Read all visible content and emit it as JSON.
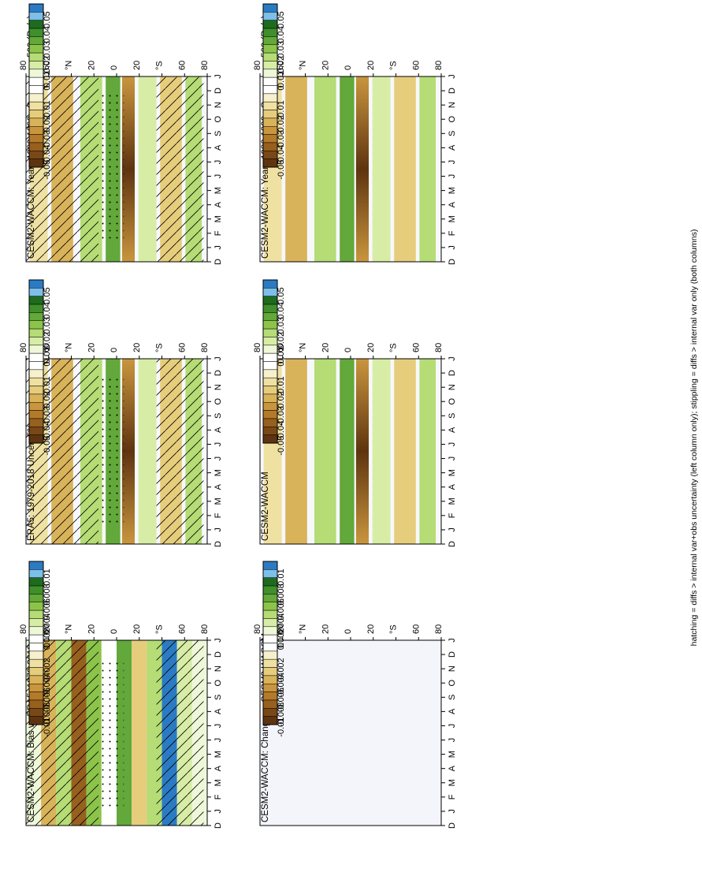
{
  "figure": {
    "footnote": "hatching = diffs > internal var+obs uncertainty (left column only); stippling = diffs > internal var only (both columns)"
  },
  "chart_data": [
    {
      "type": "heatmap",
      "panel": "left-top",
      "title": "CESM2-WACCM: Years 1980-1999 : Ocean : wap500 (Pa/s)",
      "x_ticks": [
        "D",
        "J",
        "F",
        "M",
        "A",
        "M",
        "J",
        "J",
        "A",
        "S",
        "O",
        "N",
        "D",
        "J"
      ],
      "y_ticks": [
        "80",
        "60",
        "°N",
        "20",
        "0",
        "20",
        "°S",
        "60",
        "80"
      ],
      "hatching": true,
      "stippling": true
    },
    {
      "type": "heatmap",
      "panel": "right-top",
      "title": "CESM2-WACCM: Years 1980-1999 : Ocean : wap500 (Pa/s)",
      "x_ticks": [
        "D",
        "J",
        "F",
        "M",
        "A",
        "M",
        "J",
        "J",
        "A",
        "S",
        "O",
        "N",
        "D",
        "J"
      ],
      "y_ticks": [
        "80",
        "60",
        "°N",
        "20",
        "0",
        "20",
        "°S",
        "60",
        "80"
      ],
      "hatching": false,
      "stippling": false
    },
    {
      "type": "heatmap",
      "panel": "left-middle",
      "title": "ERA5: 1979-2018 Uncer=5%",
      "x_ticks": [
        "D",
        "J",
        "F",
        "M",
        "A",
        "M",
        "J",
        "J",
        "A",
        "S",
        "O",
        "N",
        "D",
        "J"
      ],
      "y_ticks": [
        "80",
        "60",
        "°N",
        "20",
        "0",
        "20",
        "°S",
        "60",
        "80"
      ],
      "hatching": true,
      "stippling": true
    },
    {
      "type": "heatmap",
      "panel": "right-middle",
      "title": "CESM2-WACCM",
      "x_ticks": [
        "D",
        "J",
        "F",
        "M",
        "A",
        "M",
        "J",
        "J",
        "A",
        "S",
        "O",
        "N",
        "D",
        "J"
      ],
      "y_ticks": [
        "80",
        "60",
        "°N",
        "20",
        "0",
        "20",
        "°S",
        "60",
        "80"
      ],
      "hatching": false,
      "stippling": false
    },
    {
      "type": "heatmap",
      "panel": "left-bottom",
      "title": "CESM2-WACCM: Bias vs ERA5: 1979-2018",
      "x_ticks": [
        "D",
        "J",
        "F",
        "M",
        "A",
        "M",
        "J",
        "J",
        "A",
        "S",
        "O",
        "N",
        "D",
        "J"
      ],
      "y_ticks": [
        "80",
        "60",
        "°N",
        "20",
        "0",
        "20",
        "°S",
        "60",
        "80"
      ],
      "hatching": true,
      "stippling": true
    },
    {
      "type": "heatmap",
      "panel": "right-bottom",
      "title": "CESM2-WACCM: Change vs CESM2-WACCM",
      "x_ticks": [
        "D",
        "J",
        "F",
        "M",
        "A",
        "M",
        "J",
        "J",
        "A",
        "S",
        "O",
        "N",
        "D",
        "J"
      ],
      "y_ticks": [
        "80",
        "60",
        "°N",
        "20",
        "0",
        "20",
        "°S",
        "60",
        "80"
      ],
      "hatching": false,
      "stippling": false
    }
  ],
  "colorbars": {
    "large": {
      "labels": [
        "0.05",
        "0.04",
        "0.03",
        "0.02",
        "0.01",
        "0",
        "-0.01",
        "-0.02",
        "-0.03",
        "-0.04",
        "-0.05"
      ],
      "colors": [
        "#2b7bc4",
        "#7cc0ea",
        "#1e6b1e",
        "#3f8f2a",
        "#62a83a",
        "#8cc44a",
        "#b5dc75",
        "#d7eda6",
        "#eef7d8",
        "#ffffff",
        "#ffffff",
        "#f7f0cc",
        "#efe1a2",
        "#e6cd7c",
        "#d9b35a",
        "#c9963e",
        "#b37a2a",
        "#97601e",
        "#7a4816",
        "#5e3410"
      ]
    },
    "small": {
      "labels": [
        "0.01",
        "0.008",
        "0.006",
        "0.004",
        "0.002",
        "0",
        "-0.002",
        "-0.004",
        "-0.006",
        "-0.008",
        "-0.01"
      ],
      "colors": [
        "#2b7bc4",
        "#7cc0ea",
        "#1e6b1e",
        "#3f8f2a",
        "#62a83a",
        "#8cc44a",
        "#b5dc75",
        "#d7eda6",
        "#eef7d8",
        "#ffffff",
        "#ffffff",
        "#f7f0cc",
        "#efe1a2",
        "#e6cd7c",
        "#d9b35a",
        "#c9963e",
        "#b37a2a",
        "#97601e",
        "#7a4816",
        "#5e3410"
      ]
    }
  }
}
